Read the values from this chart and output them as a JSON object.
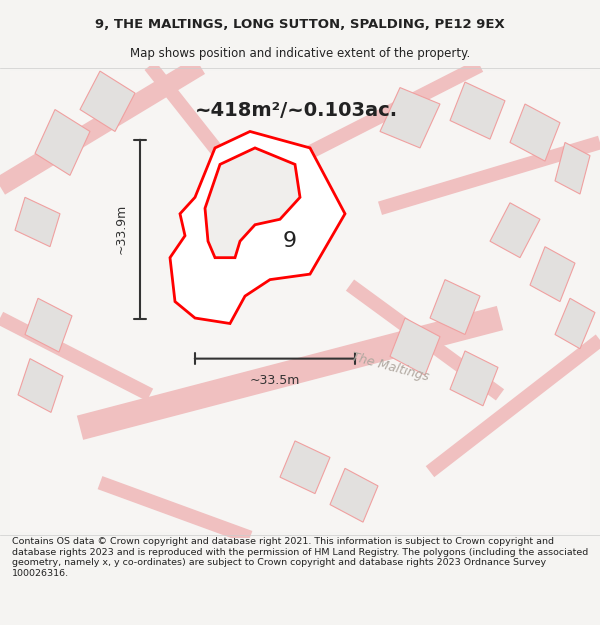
{
  "title_line1": "9, THE MALTINGS, LONG SUTTON, SPALDING, PE12 9EX",
  "title_line2": "Map shows position and indicative extent of the property.",
  "area_label": "~418m²/~0.103ac.",
  "property_number": "9",
  "dim_horizontal": "~33.5m",
  "dim_vertical": "~33.9m",
  "road_label": "The Maltings",
  "footer_text": "Contains OS data © Crown copyright and database right 2021. This information is subject to Crown copyright and database rights 2023 and is reproduced with the permission of HM Land Registry. The polygons (including the associated geometry, namely x, y co-ordinates) are subject to Crown copyright and database rights 2023 Ordnance Survey 100026316.",
  "bg_color": "#f5f4f2",
  "map_bg": "#ffffff",
  "property_fill": "#ffffff",
  "property_edge": "#ff0000",
  "building_fill": "#f0eeec",
  "building_edge": "#ff0000",
  "background_buildings_color": "#e8e6e4",
  "road_color": "#e8e4e0",
  "dim_color": "#333333",
  "title_color": "#222222",
  "road_label_color": "#aaaaaa"
}
